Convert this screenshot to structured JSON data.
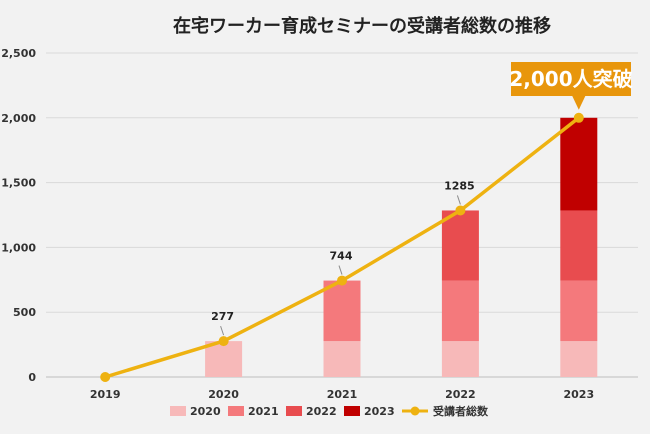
{
  "chart_data": {
    "type": "bar",
    "title": "在宅ワーカー育成セミナーの受講者総数の推移",
    "categories": [
      "2019",
      "2020",
      "2021",
      "2022",
      "2023"
    ],
    "ylim": [
      0,
      2500
    ],
    "yticks": [
      0,
      500,
      1000,
      1500,
      2000,
      2500
    ],
    "ytick_labels": [
      "0",
      "500",
      "1,000",
      "1,500",
      "2,000",
      "2,500"
    ],
    "stacked_series": [
      {
        "name": "2020",
        "color": "#f7b9b9",
        "values": [
          0,
          277,
          277,
          277,
          277
        ]
      },
      {
        "name": "2021",
        "color": "#f4797c",
        "values": [
          0,
          0,
          467,
          467,
          467
        ]
      },
      {
        "name": "2022",
        "color": "#e84c4f",
        "values": [
          0,
          0,
          0,
          541,
          541
        ]
      },
      {
        "name": "2023",
        "color": "#c00000",
        "values": [
          0,
          0,
          0,
          0,
          715
        ]
      }
    ],
    "line_series": {
      "name": "受講者総数",
      "color": "#eeb211",
      "values": [
        0,
        277,
        744,
        1285,
        2000
      ]
    },
    "data_labels": [
      "",
      "277",
      "744",
      "1285",
      ""
    ],
    "callout": {
      "text": "2,000人突破",
      "color": "#e8960c"
    },
    "legend_position": "bottom",
    "grid": true
  }
}
